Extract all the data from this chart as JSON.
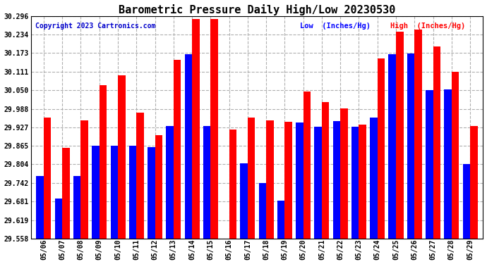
{
  "title": "Barometric Pressure Daily High/Low 20230530",
  "copyright": "Copyright 2023 Cartronics.com",
  "legend_low": "Low  (Inches/Hg)",
  "legend_high": "High  (Inches/Hg)",
  "dates": [
    "05/06",
    "05/07",
    "05/08",
    "05/09",
    "05/10",
    "05/11",
    "05/12",
    "05/13",
    "05/14",
    "05/15",
    "05/16",
    "05/17",
    "05/18",
    "05/19",
    "05/20",
    "05/21",
    "05/22",
    "05/23",
    "05/24",
    "05/25",
    "05/26",
    "05/27",
    "05/28",
    "05/29"
  ],
  "high": [
    29.96,
    29.858,
    29.95,
    30.067,
    30.1,
    29.975,
    29.9,
    30.15,
    30.285,
    30.285,
    29.92,
    29.96,
    29.95,
    29.945,
    30.045,
    30.01,
    29.99,
    29.935,
    30.155,
    30.245,
    30.25,
    30.195,
    30.11,
    29.93
  ],
  "low": [
    29.765,
    29.69,
    29.765,
    29.865,
    29.865,
    29.865,
    29.86,
    29.93,
    30.17,
    29.93,
    29.558,
    29.808,
    29.742,
    29.684,
    29.942,
    29.928,
    29.948,
    29.928,
    29.958,
    30.17,
    30.172,
    30.05,
    30.052,
    29.804
  ],
  "ylim_min": 29.558,
  "ylim_max": 30.296,
  "yticks": [
    29.558,
    29.619,
    29.681,
    29.742,
    29.804,
    29.865,
    29.927,
    29.988,
    30.05,
    30.111,
    30.173,
    30.234,
    30.296
  ],
  "bg_color": "#ffffff",
  "bar_color_high": "#ff0000",
  "bar_color_low": "#0000ff",
  "grid_color": "#b0b0b0",
  "title_color": "#000000",
  "copyright_color": "#0000cc",
  "legend_low_color": "#0000ff",
  "legend_high_color": "#ff0000",
  "bar_width": 0.4
}
